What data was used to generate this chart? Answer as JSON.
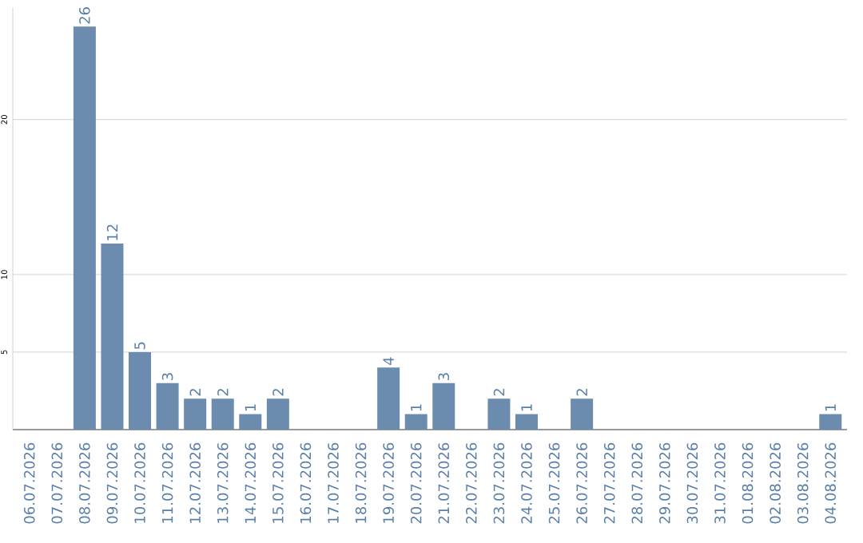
{
  "chart_data": {
    "type": "bar",
    "categories": [
      "06.07.2026",
      "07.07.2026",
      "08.07.2026",
      "09.07.2026",
      "10.07.2026",
      "11.07.2026",
      "12.07.2026",
      "13.07.2026",
      "14.07.2026",
      "15.07.2026",
      "16.07.2026",
      "17.07.2026",
      "18.07.2026",
      "19.07.2026",
      "20.07.2026",
      "21.07.2026",
      "22.07.2026",
      "23.07.2026",
      "24.07.2026",
      "25.07.2026",
      "26.07.2026",
      "27.07.2026",
      "28.07.2026",
      "29.07.2026",
      "30.07.2026",
      "31.07.2026",
      "01.08.2026",
      "02.08.2026",
      "03.08.2026",
      "04.08.2026"
    ],
    "values": [
      0,
      0,
      26,
      12,
      5,
      3,
      2,
      2,
      1,
      2,
      0,
      0,
      0,
      4,
      1,
      3,
      0,
      2,
      1,
      0,
      2,
      0,
      0,
      0,
      0,
      0,
      0,
      0,
      0,
      1
    ],
    "value_labels": [
      null,
      null,
      "26",
      "12",
      "5",
      "3",
      "2",
      "2",
      "1",
      "2",
      null,
      null,
      null,
      "4",
      "1",
      "3",
      null,
      "2",
      "1",
      null,
      "2",
      null,
      null,
      null,
      null,
      null,
      null,
      null,
      null,
      "1"
    ],
    "color": "#6b8cae",
    "ylim": [
      0,
      27.2
    ],
    "yticks": [
      5,
      10,
      20
    ],
    "grid": "y"
  }
}
